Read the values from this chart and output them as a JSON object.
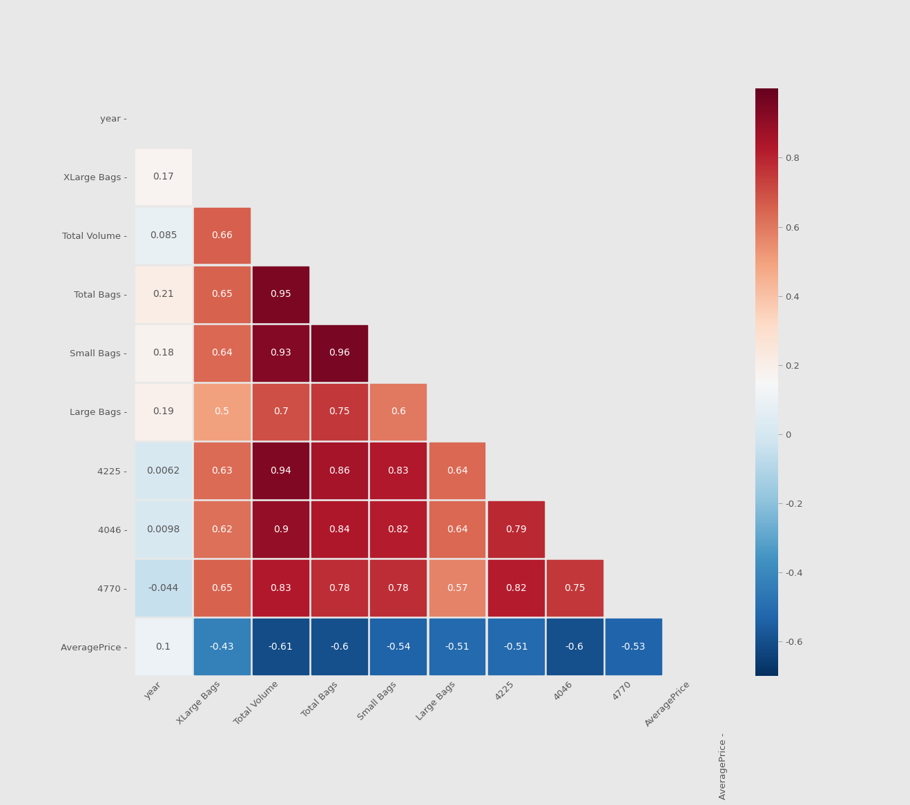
{
  "labels": [
    "year",
    "XLarge Bags",
    "Total Volume",
    "Total Bags",
    "Small Bags",
    "Large Bags",
    "4225",
    "4046",
    "4770",
    "AveragePrice"
  ],
  "corr_matrix": [
    [
      null,
      null,
      null,
      null,
      null,
      null,
      null,
      null,
      null,
      null
    ],
    [
      0.17,
      null,
      null,
      null,
      null,
      null,
      null,
      null,
      null,
      null
    ],
    [
      0.085,
      0.66,
      null,
      null,
      null,
      null,
      null,
      null,
      null,
      null
    ],
    [
      0.21,
      0.65,
      0.95,
      null,
      null,
      null,
      null,
      null,
      null,
      null
    ],
    [
      0.18,
      0.64,
      0.93,
      0.96,
      null,
      null,
      null,
      null,
      null,
      null
    ],
    [
      0.19,
      0.5,
      0.7,
      0.75,
      0.6,
      null,
      null,
      null,
      null,
      null
    ],
    [
      0.0062,
      0.63,
      0.94,
      0.86,
      0.83,
      0.64,
      null,
      null,
      null,
      null
    ],
    [
      0.0098,
      0.62,
      0.9,
      0.84,
      0.82,
      0.64,
      0.79,
      null,
      null,
      null
    ],
    [
      -0.044,
      0.65,
      0.83,
      0.78,
      0.78,
      0.57,
      0.82,
      0.75,
      null,
      null
    ],
    [
      0.1,
      -0.43,
      -0.61,
      -0.6,
      -0.54,
      -0.51,
      -0.51,
      -0.6,
      -0.53,
      null
    ]
  ],
  "vmin": -0.7,
  "vmax": 1.0,
  "cmap": "RdBu_r",
  "background_color": "#ffffff",
  "figure_bg": "#e8e8e8",
  "text_color_light": "#ffffff",
  "text_color_dark": "#555555",
  "colorbar_ticks": [
    -0.6,
    -0.4,
    -0.2,
    0.0,
    0.2,
    0.4,
    0.6,
    0.8
  ],
  "cell_text_threshold": 0.25
}
